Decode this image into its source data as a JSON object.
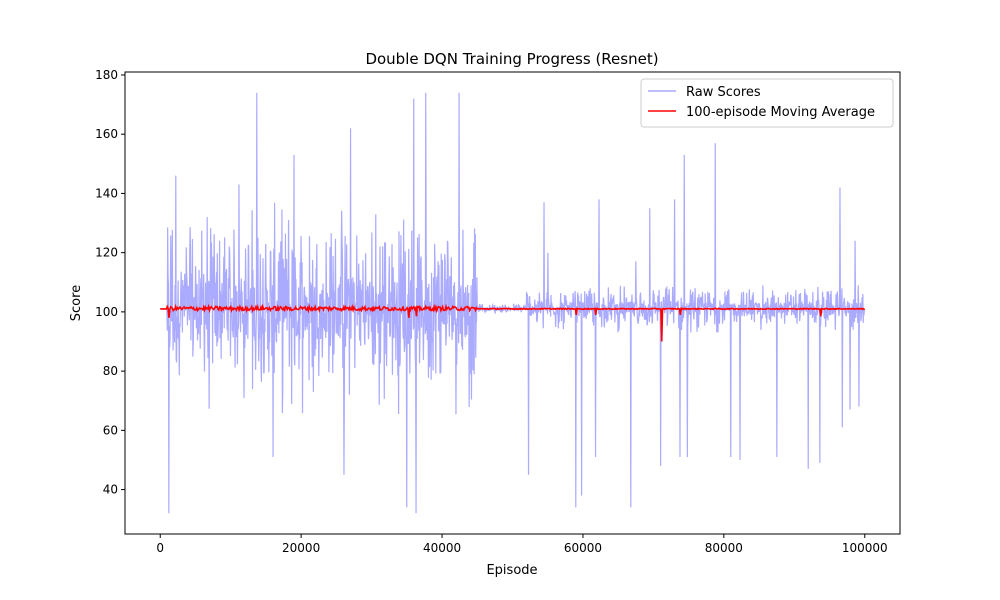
{
  "chart_data": {
    "type": "line",
    "title": "Double DQN Training Progress (Resnet)",
    "xlabel": "Episode",
    "ylabel": "Score",
    "xlim": [
      -5000,
      105000
    ],
    "ylim": [
      25,
      181
    ],
    "xticks": [
      0,
      20000,
      40000,
      60000,
      80000,
      100000
    ],
    "xtick_labels": [
      "0",
      "20000",
      "40000",
      "60000",
      "80000",
      "100000"
    ],
    "yticks": [
      40,
      60,
      80,
      100,
      120,
      140,
      160,
      180
    ],
    "ytick_labels": [
      "40",
      "60",
      "80",
      "100",
      "120",
      "140",
      "160",
      "180"
    ],
    "grid": false,
    "legend_position": "top-right",
    "series": [
      {
        "name": "Raw Scores",
        "color": "#aaaaff",
        "segments": [
          {
            "range": [
              0,
              1000
            ],
            "baseline": 101,
            "spread": 0,
            "lo": 101,
            "hi": 101
          },
          {
            "range": [
              1000,
              45000
            ],
            "baseline": 101,
            "spread": 36,
            "lo": 32,
            "hi": 174
          },
          {
            "range": [
              45000,
              52000
            ],
            "baseline": 101,
            "spread": 2,
            "lo": 99,
            "hi": 118
          },
          {
            "range": [
              52000,
              100000
            ],
            "baseline": 101,
            "spread": 8,
            "lo": 34,
            "hi": 157
          }
        ],
        "spikes": [
          {
            "x": 13700,
            "y": 174
          },
          {
            "x": 37700,
            "y": 174
          },
          {
            "x": 42400,
            "y": 174
          },
          {
            "x": 36000,
            "y": 172
          },
          {
            "x": 27000,
            "y": 162
          },
          {
            "x": 19000,
            "y": 153
          },
          {
            "x": 11200,
            "y": 143
          },
          {
            "x": 2200,
            "y": 146
          },
          {
            "x": 1200,
            "y": 32
          },
          {
            "x": 35000,
            "y": 34
          },
          {
            "x": 36300,
            "y": 32
          },
          {
            "x": 26100,
            "y": 45
          },
          {
            "x": 16000,
            "y": 51
          },
          {
            "x": 52300,
            "y": 45
          },
          {
            "x": 54500,
            "y": 137
          },
          {
            "x": 55000,
            "y": 120
          },
          {
            "x": 59000,
            "y": 34
          },
          {
            "x": 59800,
            "y": 38
          },
          {
            "x": 61800,
            "y": 51
          },
          {
            "x": 62300,
            "y": 138
          },
          {
            "x": 66800,
            "y": 34
          },
          {
            "x": 67500,
            "y": 117
          },
          {
            "x": 69500,
            "y": 135
          },
          {
            "x": 71000,
            "y": 48
          },
          {
            "x": 73000,
            "y": 138
          },
          {
            "x": 73800,
            "y": 51
          },
          {
            "x": 74800,
            "y": 51
          },
          {
            "x": 74400,
            "y": 153
          },
          {
            "x": 78800,
            "y": 157
          },
          {
            "x": 81000,
            "y": 51
          },
          {
            "x": 82300,
            "y": 50
          },
          {
            "x": 87500,
            "y": 51
          },
          {
            "x": 92000,
            "y": 47
          },
          {
            "x": 93600,
            "y": 49
          },
          {
            "x": 96500,
            "y": 142
          },
          {
            "x": 96800,
            "y": 61
          },
          {
            "x": 97900,
            "y": 67
          },
          {
            "x": 99200,
            "y": 68
          },
          {
            "x": 98600,
            "y": 124
          }
        ]
      },
      {
        "name": "100-episode Moving Average",
        "color": "#ff0000",
        "baseline": 101,
        "segments": [
          {
            "range": [
              0,
              1000
            ],
            "spread": 0
          },
          {
            "range": [
              1000,
              45000
            ],
            "spread": 1.4
          },
          {
            "range": [
              45000,
              100000
            ],
            "spread": 0.3
          }
        ],
        "dips": [
          {
            "x": 1200,
            "y": 98
          },
          {
            "x": 35300,
            "y": 98
          },
          {
            "x": 36400,
            "y": 98.5
          },
          {
            "x": 59000,
            "y": 99
          },
          {
            "x": 61800,
            "y": 99
          },
          {
            "x": 71200,
            "y": 90
          },
          {
            "x": 73800,
            "y": 99
          },
          {
            "x": 93800,
            "y": 98.5
          }
        ]
      }
    ]
  }
}
